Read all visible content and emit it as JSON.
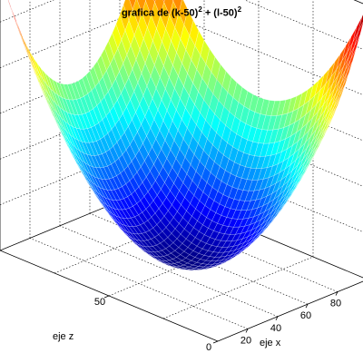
{
  "chart_data": {
    "type": "surface",
    "title_parts": [
      "grafica de (k-50)",
      "2",
      " + (l-50)",
      "2"
    ],
    "xlabel": "eje x",
    "zlabel": "eje z",
    "x_ticks": [
      "20",
      "40",
      "60",
      "80"
    ],
    "z_ticks": [
      "0",
      "50"
    ],
    "x_range": [
      0,
      100
    ],
    "y_range": [
      0,
      100
    ],
    "z_range": [
      0,
      5000
    ],
    "function": "(k-50)^2 + (l-50)^2",
    "colormap": "jet",
    "grid": true
  }
}
